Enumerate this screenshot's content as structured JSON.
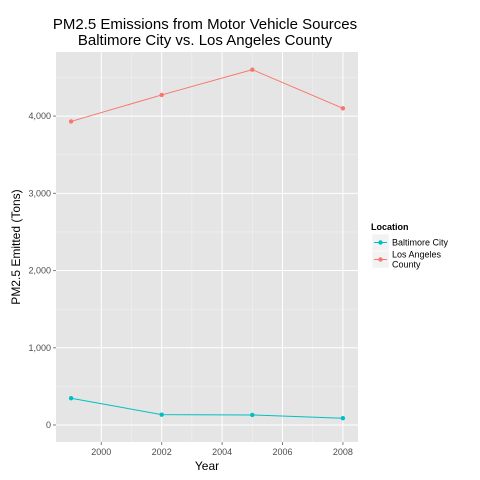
{
  "chart_data": {
    "type": "line",
    "title": "PM2.5 Emissions from Motor Vehicle Sources",
    "subtitle": "Baltimore City vs. Los Angeles County",
    "xlabel": "Year",
    "ylabel": "PM2.5 Emitted (Tons)",
    "x": [
      1999,
      2002,
      2005,
      2008
    ],
    "xlim": [
      1998.5,
      2008.5
    ],
    "ylim": [
      -220,
      4830
    ],
    "x_ticks": [
      "2000",
      "2002",
      "2004",
      "2006",
      "2008"
    ],
    "y_ticks": [
      "0",
      "1,000",
      "2,000",
      "3,000",
      "4,000"
    ],
    "legend_title": "Location",
    "legend_position": "right",
    "grid": true,
    "series": [
      {
        "name": "Baltimore City",
        "color": "#00bfc4",
        "values": [
          346.8,
          134.3,
          130.4,
          88.3
        ]
      },
      {
        "name": "Los Angeles County",
        "color": "#f8766d",
        "values": [
          3931.1,
          4274.0,
          4601.4,
          4101.3
        ]
      }
    ]
  }
}
